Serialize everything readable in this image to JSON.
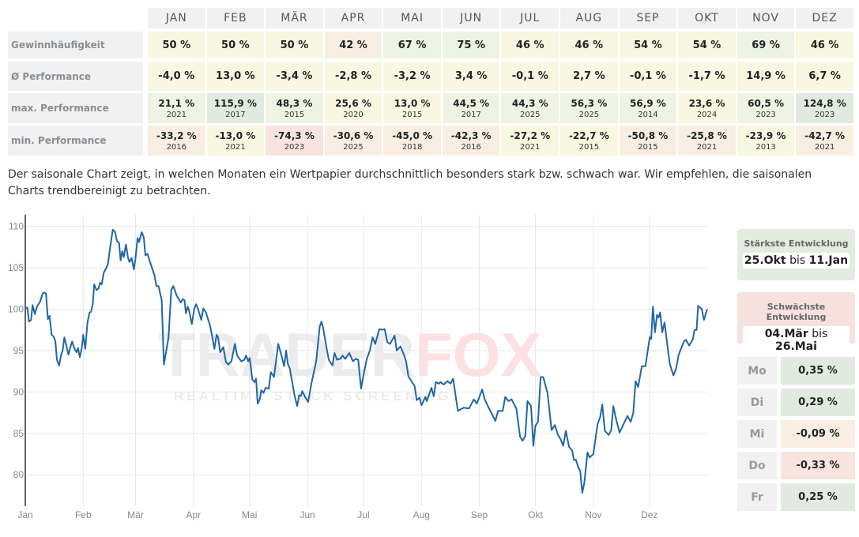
{
  "table": {
    "months": [
      "JAN",
      "FEB",
      "MÄR",
      "APR",
      "MAI",
      "JUN",
      "JUL",
      "AUG",
      "SEP",
      "OKT",
      "NOV",
      "DEZ"
    ],
    "rows": [
      {
        "label": "Gewinnhäufigkeit",
        "cells": [
          {
            "v": "50 %",
            "t": "y"
          },
          {
            "v": "50 %",
            "t": "y"
          },
          {
            "v": "50 %",
            "t": "y"
          },
          {
            "v": "42 %",
            "t": "p"
          },
          {
            "v": "67 %",
            "t": "g"
          },
          {
            "v": "75 %",
            "t": "g"
          },
          {
            "v": "46 %",
            "t": "y"
          },
          {
            "v": "46 %",
            "t": "y"
          },
          {
            "v": "54 %",
            "t": "y"
          },
          {
            "v": "54 %",
            "t": "y"
          },
          {
            "v": "69 %",
            "t": "g"
          },
          {
            "v": "46 %",
            "t": "y"
          }
        ]
      },
      {
        "label": "Ø Performance",
        "cells": [
          {
            "v": "-4,0 %",
            "t": "y"
          },
          {
            "v": "13,0 %",
            "t": "y"
          },
          {
            "v": "-3,4 %",
            "t": "y"
          },
          {
            "v": "-2,8 %",
            "t": "y"
          },
          {
            "v": "-3,2 %",
            "t": "y"
          },
          {
            "v": "3,4 %",
            "t": "y"
          },
          {
            "v": "-0,1 %",
            "t": "y"
          },
          {
            "v": "2,7 %",
            "t": "y"
          },
          {
            "v": "-0,1 %",
            "t": "y"
          },
          {
            "v": "-1,7 %",
            "t": "y"
          },
          {
            "v": "14,9 %",
            "t": "y"
          },
          {
            "v": "6,7 %",
            "t": "y"
          }
        ]
      },
      {
        "label": "max. Performance",
        "cells": [
          {
            "v": "21,1 %",
            "y": "2021",
            "t": "g"
          },
          {
            "v": "115,9 %",
            "y": "2017",
            "t": "G"
          },
          {
            "v": "48,3 %",
            "y": "2015",
            "t": "g"
          },
          {
            "v": "25,6 %",
            "y": "2020",
            "t": "y"
          },
          {
            "v": "13,0 %",
            "y": "2015",
            "t": "y"
          },
          {
            "v": "44,5 %",
            "y": "2017",
            "t": "g"
          },
          {
            "v": "44,3 %",
            "y": "2025",
            "t": "g"
          },
          {
            "v": "56,3 %",
            "y": "2025",
            "t": "g"
          },
          {
            "v": "56,9 %",
            "y": "2014",
            "t": "g"
          },
          {
            "v": "23,6 %",
            "y": "2024",
            "t": "y"
          },
          {
            "v": "60,5 %",
            "y": "2023",
            "t": "g"
          },
          {
            "v": "124,8 %",
            "y": "2023",
            "t": "G"
          }
        ]
      },
      {
        "label": "min. Performance",
        "cells": [
          {
            "v": "-33,2 %",
            "y": "2016",
            "t": "p"
          },
          {
            "v": "-13,0 %",
            "y": "2021",
            "t": "y"
          },
          {
            "v": "-74,3 %",
            "y": "2023",
            "t": "r"
          },
          {
            "v": "-30,6 %",
            "y": "2025",
            "t": "p"
          },
          {
            "v": "-45,0 %",
            "y": "2018",
            "t": "p"
          },
          {
            "v": "-42,3 %",
            "y": "2016",
            "t": "p"
          },
          {
            "v": "-27,2 %",
            "y": "2021",
            "t": "y"
          },
          {
            "v": "-22,7 %",
            "y": "2015",
            "t": "y"
          },
          {
            "v": "-50,8 %",
            "y": "2015",
            "t": "p"
          },
          {
            "v": "-25,8 %",
            "y": "2021",
            "t": "p"
          },
          {
            "v": "-23,9 %",
            "y": "2013",
            "t": "y"
          },
          {
            "v": "-42,7 %",
            "y": "2021",
            "t": "p"
          }
        ]
      }
    ]
  },
  "description": "Der saisonale Chart zeigt, in welchen Monaten ein Wertpapier durchschnittlich besonders stark bzw. schwach war. Wir empfehlen, die saisonalen Charts trendbereinigt zu betrachten.",
  "watermark": {
    "brand_a": "TRADER",
    "brand_b": "FOX",
    "tagline": "REALTIME STOCK SCREENING"
  },
  "strongest": {
    "title": "Stärkste Entwicklung",
    "from": "25.Okt",
    "sep": "bis",
    "to": "11.Jan",
    "color": "#e2ecdf"
  },
  "weakest": {
    "title": "Schwächste Entwicklung",
    "from": "04.Mär",
    "sep": "bis",
    "to": "26.Mai",
    "color": "#f7e1df"
  },
  "weekdays": [
    {
      "day": "Mo",
      "value": "0,35 %",
      "t": "G"
    },
    {
      "day": "Di",
      "value": "0,29 %",
      "t": "G"
    },
    {
      "day": "Mi",
      "value": "-0,09 %",
      "t": "p"
    },
    {
      "day": "Do",
      "value": "-0,33 %",
      "t": "r"
    },
    {
      "day": "Fr",
      "value": "0,25 %",
      "t": "G"
    }
  ],
  "chart_data": {
    "type": "line",
    "line_color": "#2166a5",
    "xlabel": "day of year",
    "ylabel": "",
    "xlim": [
      0,
      365
    ],
    "ylim": [
      76.2,
      111.4
    ],
    "yticks": [
      80,
      85,
      90,
      95,
      100,
      105,
      110
    ],
    "xticks": [
      {
        "day": 0,
        "label": "Jan"
      },
      {
        "day": 31,
        "label": "Feb"
      },
      {
        "day": 59,
        "label": "Mär"
      },
      {
        "day": 90,
        "label": "Apr"
      },
      {
        "day": 120,
        "label": "Mai"
      },
      {
        "day": 151,
        "label": "Jun"
      },
      {
        "day": 181,
        "label": "Jul"
      },
      {
        "day": 212,
        "label": "Aug"
      },
      {
        "day": 243,
        "label": "Sep"
      },
      {
        "day": 273,
        "label": "Okt"
      },
      {
        "day": 304,
        "label": "Nov"
      },
      {
        "day": 334,
        "label": "Dez"
      }
    ],
    "grid": true,
    "x": [
      0,
      1.1,
      2,
      3.1,
      3.9,
      5.1,
      6.2,
      7.9,
      9.3,
      10.2,
      11.1,
      12.1,
      13,
      14.1,
      15.2,
      16.1,
      16.9,
      18.1,
      19.2,
      20,
      20.9,
      22,
      23.1,
      24,
      25.1,
      26.2,
      27.4,
      28.2,
      29.2,
      30.2,
      31,
      32.1,
      33.3,
      34.4,
      35.2,
      36.1,
      36.9,
      38.1,
      39.2,
      40,
      40.9,
      42,
      43.4,
      44.3,
      45.4,
      46.8,
      47.9,
      49.1,
      50.2,
      51,
      51.9,
      52.7,
      53.9,
      55,
      55.8,
      56.9,
      58.1,
      58.9,
      60.1,
      60.9,
      62.3,
      63.4,
      64.3,
      65.4,
      66.8,
      69.1,
      70.2,
      71.3,
      73,
      74.2,
      76.7,
      78.1,
      79.2,
      80.9,
      83.2,
      84.3,
      85.2,
      86,
      86.9,
      87.7,
      89.1,
      90.5,
      91.4,
      92.5,
      94.2,
      95.3,
      96.7,
      99,
      100.1,
      101.2,
      102.4,
      103.2,
      104.3,
      106,
      107.4,
      108.6,
      110.3,
      112.2,
      113.4,
      115.6,
      117.3,
      118.2,
      119.3,
      120.1,
      121.5,
      122.7,
      123.5,
      124.4,
      125.5,
      126.3,
      127.5,
      128.6,
      130.3,
      131.4,
      133.1,
      135.4,
      137.1,
      138.5,
      139.6,
      140.5,
      141.6,
      144.1,
      145.5,
      146.6,
      147.5,
      148.3,
      149.7,
      151.4,
      153.1,
      155.7,
      157.6,
      158.5,
      159.3,
      160.7,
      162.4,
      164.4,
      165.5,
      166.9,
      168.6,
      169.8,
      171.2,
      173.4,
      175.4,
      176.8,
      178.2,
      179.7,
      181.3,
      182.8,
      184.4,
      185.9,
      187.3,
      189.5,
      190.9,
      192.3,
      193.8,
      195.2,
      197.7,
      198.8,
      200.8,
      202.8,
      203.9,
      205,
      207,
      208.4,
      209.5,
      211,
      212.1,
      214.1,
      214.9,
      217.4,
      218.6,
      219.7,
      221.4,
      222.2,
      223.9,
      225.9,
      227.6,
      229,
      231.5,
      234.6,
      237.5,
      240,
      241.7,
      244.5,
      245.9,
      247.6,
      251.6,
      253,
      255.5,
      256.9,
      258.6,
      260.3,
      262.8,
      264.8,
      266.2,
      267.6,
      268.8,
      270.7,
      271.9,
      273,
      274.4,
      275.8,
      277.2,
      279.5,
      281.7,
      283.4,
      285.1,
      286.5,
      287.9,
      289.3,
      291,
      292.7,
      293.6,
      294.7,
      296.1,
      297,
      298.1,
      299.2,
      300.9,
      302,
      304,
      306.3,
      307.7,
      308.8,
      310.2,
      312.2,
      313.6,
      314.7,
      316.4,
      318.1,
      320.4,
      322.3,
      324,
      325.4,
      326.6,
      328,
      330,
      331.9,
      334.2,
      335,
      335.9,
      337,
      338.1,
      339,
      339.8,
      340.9,
      342.1,
      344.9,
      346.9,
      348.3,
      349.7,
      352.5,
      353.6,
      355.3,
      357.3,
      358.2,
      359.3,
      360.1,
      362.1,
      363.2,
      365
    ],
    "y": [
      100.1,
      100.2,
      98.5,
      98.7,
      100.5,
      99.4,
      100.3,
      100.9,
      101.9,
      102,
      101.9,
      98.8,
      99.2,
      96.9,
      96.7,
      96.1,
      93.9,
      93.2,
      94.5,
      95,
      96.6,
      95.6,
      94.5,
      95.3,
      96.1,
      95.3,
      94.8,
      95.3,
      94.2,
      95.3,
      96.9,
      95.2,
      98.4,
      99.6,
      99.7,
      100.6,
      103,
      102.3,
      102.5,
      103.2,
      103,
      104.4,
      105,
      105.5,
      107.4,
      109.6,
      109.4,
      108.2,
      108,
      105.9,
      107,
      106.3,
      107.8,
      106.2,
      105.7,
      106.2,
      104.8,
      106,
      108.6,
      108.1,
      109.3,
      108.7,
      106.5,
      106.7,
      105.7,
      104.1,
      102.8,
      102.8,
      101.1,
      93.3,
      96.6,
      102.3,
      102.8,
      101.7,
      100.8,
      101.2,
      101.1,
      99.5,
      100.3,
      99.8,
      98.2,
      100.1,
      100.6,
      100,
      98.7,
      100.1,
      99.6,
      97.9,
      96.6,
      95.2,
      96.9,
      96.6,
      94.8,
      95.4,
      93.6,
      93.3,
      93.7,
      95.8,
      94.4,
      93.7,
      93.9,
      94.4,
      93.7,
      94.1,
      91.5,
      91.2,
      91.6,
      88.6,
      89.1,
      90.2,
      89.9,
      90.5,
      90.4,
      92.4,
      91.8,
      95.8,
      94.4,
      93.1,
      95,
      93.4,
      92.8,
      89.6,
      88.3,
      89.6,
      89.5,
      90.1,
      89.4,
      88.8,
      91,
      93.7,
      97.9,
      98.5,
      97.9,
      96,
      93.9,
      93.2,
      94.7,
      93.9,
      94,
      94.4,
      94,
      94.7,
      93.7,
      94,
      93.9,
      90.4,
      92.4,
      94,
      95,
      96.6,
      95.8,
      97.6,
      97.5,
      97.6,
      96,
      95.8,
      96.8,
      95,
      95.5,
      94.4,
      93.6,
      91.9,
      91.2,
      90.7,
      89,
      89.3,
      88.4,
      89.4,
      88.9,
      90.5,
      89.5,
      91.2,
      91,
      91.2,
      90.9,
      91.3,
      91,
      91.6,
      87.7,
      88.1,
      88,
      89.1,
      88.6,
      90.3,
      89.1,
      88.3,
      86.5,
      87.7,
      87.7,
      89.4,
      88.9,
      89.1,
      88,
      84.6,
      84.1,
      84.7,
      88.9,
      88.3,
      83.5,
      85.9,
      86.4,
      91.8,
      91.8,
      89.9,
      85.4,
      86,
      84.8,
      84.3,
      83.5,
      85.3,
      83.4,
      82.9,
      81.8,
      81.8,
      80.8,
      80.5,
      77.8,
      79,
      82.7,
      82.1,
      82.5,
      86.1,
      87,
      88.5,
      85.3,
      84.8,
      85.4,
      88.3,
      86.5,
      85.1,
      86.2,
      87.1,
      86.4,
      87.5,
      91.3,
      90.6,
      93.1,
      93.1,
      96.6,
      96.4,
      100.3,
      97.2,
      99.3,
      99,
      99.6,
      97.2,
      98.4,
      93.4,
      92,
      92.8,
      94.5,
      96.1,
      96.3,
      95.6,
      96.4,
      97.5,
      97.5,
      100.4,
      100,
      98.7,
      100
    ]
  }
}
